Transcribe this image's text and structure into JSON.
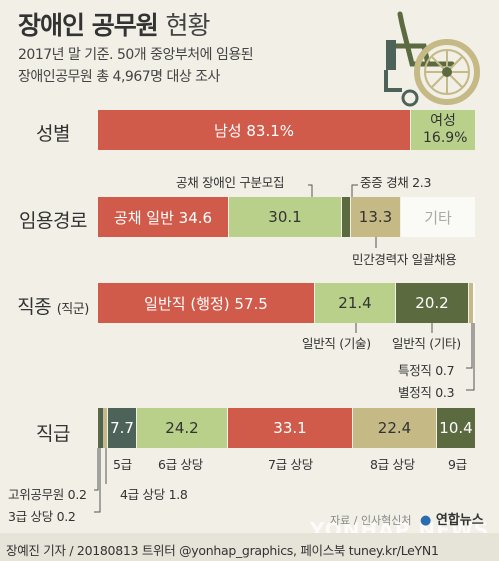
{
  "header": {
    "title_main": "장애인 공무원",
    "title_sub": "현황",
    "subtitle_1": "2017년 말 기준. 50개 중앙부처에 임용된",
    "subtitle_2": "장애인공무원 총 4,967명 대상 조사"
  },
  "colors": {
    "red": "#d15b4b",
    "green": "#b9d08a",
    "olive": "#5c6b3f",
    "tan": "#c5b985",
    "dark_teal": "#4d6258",
    "white_seg": "#fafaf7",
    "bg": "#f1efe6"
  },
  "chart_data": [
    {
      "type": "bar",
      "row_label": "성별",
      "unit": "%",
      "series": [
        {
          "name": "남성",
          "value": 83.1,
          "label": "남성 83.1%"
        },
        {
          "name": "여성",
          "value": 16.9,
          "label": "여성 16.9%"
        }
      ]
    },
    {
      "type": "bar",
      "row_label": "임용경로",
      "unit": "%",
      "series": [
        {
          "name": "공채 일반",
          "value": 34.6,
          "label": "공채 일반 34.6"
        },
        {
          "name": "공채 장애인 구분모집",
          "value": 30.1,
          "label": "30.1"
        },
        {
          "name": "중증 경채",
          "value": 2.3,
          "label": "중증 경채 2.3"
        },
        {
          "name": "민간경력자 일괄채용",
          "value": 13.3,
          "label": "13.3"
        },
        {
          "name": "기타",
          "value": 19.7,
          "label": "기타"
        }
      ]
    },
    {
      "type": "bar",
      "row_label": "직종",
      "row_label_small": "(직군)",
      "unit": "%",
      "series": [
        {
          "name": "일반직 (행정)",
          "value": 57.5,
          "label": "일반직 (행정) 57.5"
        },
        {
          "name": "일반직 (기술)",
          "value": 21.4,
          "label": "21.4"
        },
        {
          "name": "일반직 (기타)",
          "value": 20.2,
          "label": "20.2"
        },
        {
          "name": "특정직",
          "value": 0.7,
          "label": "특정직 0.7"
        },
        {
          "name": "별정직",
          "value": 0.3,
          "label": "별정직 0.3"
        }
      ]
    },
    {
      "type": "bar",
      "row_label": "직급",
      "unit": "%",
      "series": [
        {
          "name": "고위공무원",
          "value": 0.2,
          "label": "고위공무원 0.2"
        },
        {
          "name": "3급 상당",
          "value": 0.2,
          "label": "3급 상당 0.2"
        },
        {
          "name": "4급 상당",
          "value": 1.8,
          "label": "4급 상당 1.8"
        },
        {
          "name": "5급",
          "value": 7.7,
          "label": "7.7"
        },
        {
          "name": "6급 상당",
          "value": 24.2,
          "label": "24.2"
        },
        {
          "name": "7급 상당",
          "value": 33.1,
          "label": "33.1"
        },
        {
          "name": "8급 상당",
          "value": 22.4,
          "label": "22.4"
        },
        {
          "name": "9급",
          "value": 10.4,
          "label": "10.4"
        }
      ]
    }
  ],
  "footer": {
    "credit": "장예진 기자 / 20180813 트위터 @yonhap_graphics, 페이스북 tuney.kr/LeYN1",
    "source": "자료 / 인사혁신처",
    "logo": "연합뉴스",
    "watermark": "YONHAP NEWS"
  }
}
